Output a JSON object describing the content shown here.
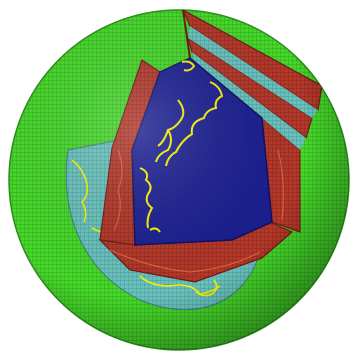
{
  "figure": {
    "subject": "cutaway-sphere-grid",
    "layers": [
      {
        "name": "outer-mesh-shell",
        "color": "#3fcf25"
      },
      {
        "name": "inner-mesh-shell",
        "color": "#5fb8b0"
      },
      {
        "name": "wedge-band",
        "color": "#a5302a"
      },
      {
        "name": "wedge-core",
        "color": "#1b1f8f"
      }
    ],
    "outline_color": "#f4f000",
    "background": "#ffffff"
  }
}
